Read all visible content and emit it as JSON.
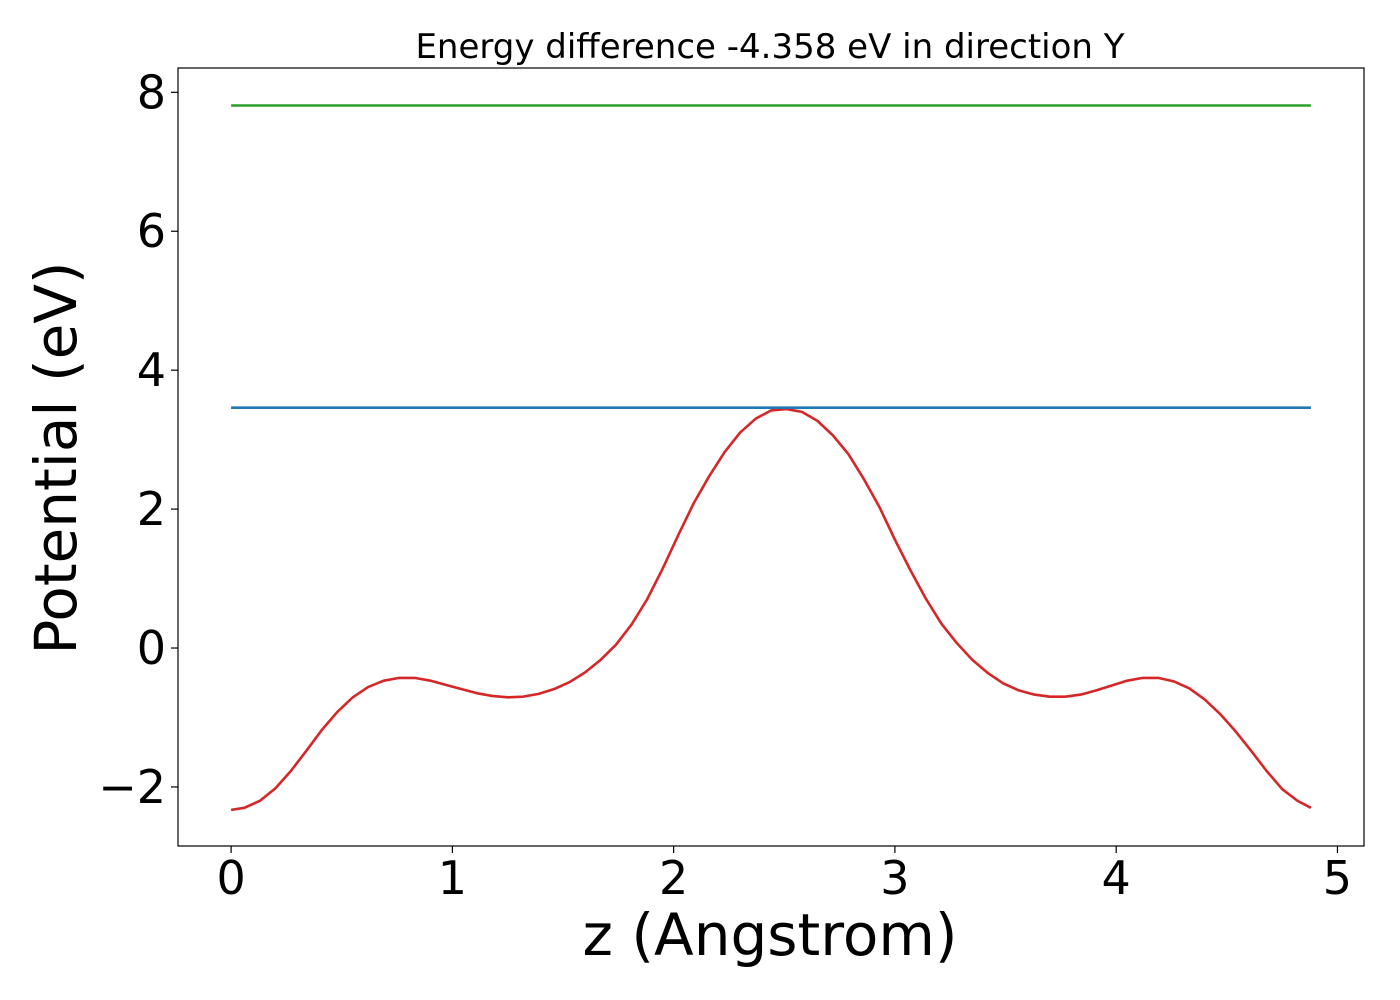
{
  "chart_data": {
    "type": "line",
    "title": "Energy difference -4.358 eV in direction Y",
    "xlabel": "z (Angstrom)",
    "ylabel": "Potential (eV)",
    "xlim": [
      -0.24,
      5.12
    ],
    "ylim": [
      -2.85,
      8.35
    ],
    "xticks": [
      0,
      1,
      2,
      3,
      4,
      5
    ],
    "xtick_labels": [
      "0",
      "1",
      "2",
      "3",
      "4",
      "5"
    ],
    "yticks": [
      -2,
      0,
      2,
      4,
      6,
      8
    ],
    "ytick_labels": [
      "−2",
      "0",
      "2",
      "4",
      "6",
      "8"
    ],
    "grid": false,
    "series": [
      {
        "color": "#d62728",
        "x": [
          0,
          0.06,
          0.13,
          0.2,
          0.27,
          0.34,
          0.41,
          0.48,
          0.55,
          0.62,
          0.69,
          0.76,
          0.83,
          0.9,
          0.97,
          1.04,
          1.11,
          1.18,
          1.25,
          1.32,
          1.39,
          1.46,
          1.53,
          1.6,
          1.67,
          1.74,
          1.81,
          1.88,
          1.95,
          2.02,
          2.09,
          2.16,
          2.23,
          2.3,
          2.37,
          2.44,
          2.51,
          2.58,
          2.65,
          2.72,
          2.79,
          2.86,
          2.93,
          3.0,
          3.07,
          3.14,
          3.21,
          3.28,
          3.35,
          3.42,
          3.49,
          3.56,
          3.63,
          3.7,
          3.77,
          3.84,
          3.91,
          3.98,
          4.05,
          4.12,
          4.19,
          4.26,
          4.33,
          4.4,
          4.47,
          4.54,
          4.61,
          4.68,
          4.75,
          4.82,
          4.88
        ],
        "y": [
          -2.33,
          -2.3,
          -2.2,
          -2.02,
          -1.77,
          -1.48,
          -1.18,
          -0.92,
          -0.71,
          -0.56,
          -0.47,
          -0.43,
          -0.43,
          -0.47,
          -0.53,
          -0.59,
          -0.65,
          -0.69,
          -0.71,
          -0.7,
          -0.66,
          -0.59,
          -0.49,
          -0.35,
          -0.17,
          0.05,
          0.34,
          0.7,
          1.14,
          1.62,
          2.08,
          2.47,
          2.82,
          3.1,
          3.3,
          3.42,
          3.44,
          3.4,
          3.27,
          3.06,
          2.79,
          2.43,
          2.03,
          1.56,
          1.12,
          0.71,
          0.35,
          0.07,
          -0.17,
          -0.36,
          -0.51,
          -0.61,
          -0.67,
          -0.7,
          -0.7,
          -0.67,
          -0.61,
          -0.54,
          -0.47,
          -0.43,
          -0.43,
          -0.48,
          -0.58,
          -0.74,
          -0.95,
          -1.2,
          -1.48,
          -1.77,
          -2.03,
          -2.2,
          -2.3
        ]
      },
      {
        "color": "#1f77b4",
        "x": [
          0,
          4.88
        ],
        "y": [
          3.46,
          3.46
        ]
      },
      {
        "color": "#2ca02c",
        "x": [
          0,
          4.88
        ],
        "y": [
          7.81,
          7.81
        ]
      }
    ]
  }
}
